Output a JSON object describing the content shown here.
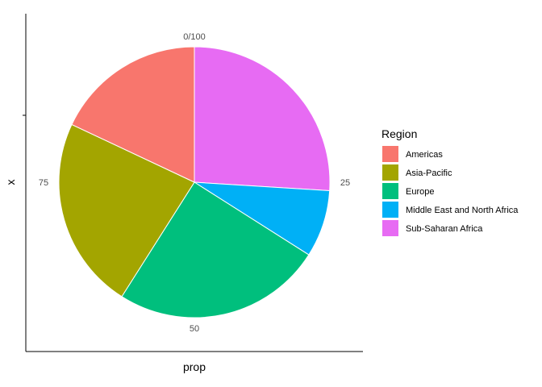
{
  "chart_data": {
    "type": "pie",
    "xlabel": "prop",
    "ylabel": "x",
    "theta_ticks": [
      "0/100",
      "25",
      "50",
      "75"
    ],
    "legend_title": "Region",
    "legend_position": "right",
    "categories": [
      "Americas",
      "Asia-Pacific",
      "Europe",
      "Middle East and North Africa",
      "Sub-Saharan Africa"
    ],
    "values": [
      18,
      23,
      25,
      8,
      26
    ],
    "slice_order": [
      "Sub-Saharan Africa",
      "Middle East and North Africa",
      "Europe",
      "Asia-Pacific",
      "Americas"
    ],
    "colors": {
      "Americas": "#F8766D",
      "Asia-Pacific": "#A3A500",
      "Europe": "#00BF7D",
      "Middle East and North Africa": "#00B0F6",
      "Sub-Saharan Africa": "#E76BF3"
    },
    "grid": false
  }
}
